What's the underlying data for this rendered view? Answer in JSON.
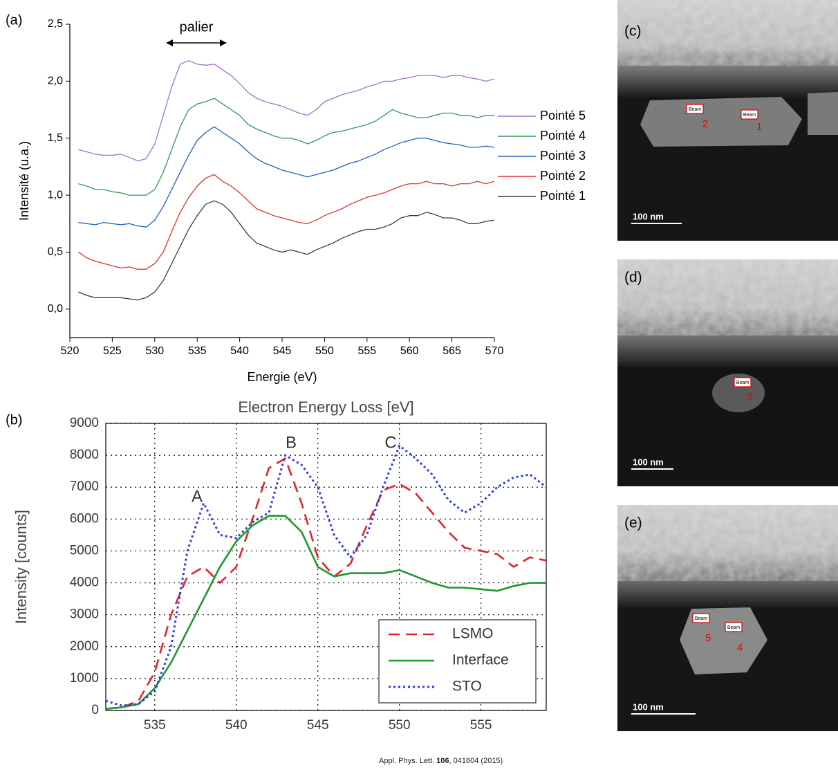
{
  "chart_data": [
    {
      "type": "line",
      "panel": "(a)",
      "xlabel": "Energie (eV)",
      "ylabel": "Intensité (u.a.)",
      "annotation": "palier",
      "xlim": [
        520,
        570
      ],
      "xticks": [
        520,
        525,
        530,
        535,
        540,
        545,
        550,
        555,
        560,
        565,
        570
      ],
      "ylim": [
        -0.25,
        2.5
      ],
      "yticks": [
        {
          "value": 0,
          "label": "0,0"
        },
        {
          "value": 0.5,
          "label": "0,5"
        },
        {
          "value": 1,
          "label": "1,0"
        },
        {
          "value": 1.5,
          "label": "1,5"
        },
        {
          "value": 2,
          "label": "2,0"
        },
        {
          "value": 2.5,
          "label": "2,5"
        }
      ],
      "grid": false,
      "legend": "right",
      "x": [
        521,
        522,
        523,
        524,
        525,
        526,
        527,
        528,
        529,
        530,
        531,
        532,
        533,
        534,
        535,
        536,
        537,
        538,
        539,
        540,
        541,
        542,
        543,
        544,
        545,
        546,
        547,
        548,
        549,
        550,
        551,
        552,
        553,
        554,
        555,
        556,
        557,
        558,
        559,
        560,
        561,
        562,
        563,
        564,
        565,
        566,
        567,
        568,
        569,
        570
      ],
      "series": [
        {
          "name": "Pointé 1",
          "color": "#3a3a3a",
          "dash": "solid",
          "values": [
            0.15,
            0.12,
            0.1,
            0.1,
            0.1,
            0.1,
            0.09,
            0.08,
            0.1,
            0.15,
            0.25,
            0.4,
            0.55,
            0.7,
            0.82,
            0.92,
            0.95,
            0.92,
            0.85,
            0.75,
            0.65,
            0.58,
            0.55,
            0.52,
            0.5,
            0.52,
            0.5,
            0.48,
            0.52,
            0.55,
            0.58,
            0.62,
            0.65,
            0.68,
            0.7,
            0.7,
            0.72,
            0.75,
            0.8,
            0.82,
            0.82,
            0.85,
            0.83,
            0.8,
            0.8,
            0.78,
            0.75,
            0.75,
            0.77,
            0.78
          ]
        },
        {
          "name": "Pointé 2",
          "color": "#e03030",
          "dash": "solid",
          "values": [
            0.5,
            0.45,
            0.42,
            0.4,
            0.38,
            0.36,
            0.37,
            0.35,
            0.35,
            0.4,
            0.5,
            0.68,
            0.85,
            0.98,
            1.08,
            1.15,
            1.18,
            1.12,
            1.08,
            1.02,
            0.95,
            0.88,
            0.85,
            0.82,
            0.8,
            0.78,
            0.76,
            0.75,
            0.78,
            0.82,
            0.85,
            0.88,
            0.92,
            0.95,
            0.98,
            1.0,
            1.02,
            1.05,
            1.08,
            1.1,
            1.1,
            1.12,
            1.1,
            1.1,
            1.08,
            1.1,
            1.1,
            1.12,
            1.1,
            1.12
          ]
        },
        {
          "name": "Pointé 3",
          "color": "#2060c0",
          "dash": "solid",
          "values": [
            0.76,
            0.75,
            0.74,
            0.76,
            0.75,
            0.74,
            0.75,
            0.73,
            0.72,
            0.78,
            0.9,
            1.05,
            1.2,
            1.35,
            1.48,
            1.55,
            1.6,
            1.55,
            1.5,
            1.45,
            1.38,
            1.32,
            1.28,
            1.25,
            1.22,
            1.2,
            1.18,
            1.16,
            1.18,
            1.2,
            1.22,
            1.25,
            1.28,
            1.3,
            1.33,
            1.36,
            1.4,
            1.43,
            1.46,
            1.48,
            1.5,
            1.5,
            1.48,
            1.46,
            1.45,
            1.44,
            1.42,
            1.42,
            1.43,
            1.42
          ]
        },
        {
          "name": "Pointé 4",
          "color": "#2e9a55",
          "dash": "solid",
          "values": [
            1.1,
            1.08,
            1.05,
            1.05,
            1.03,
            1.02,
            1.0,
            1.0,
            1.0,
            1.05,
            1.2,
            1.4,
            1.6,
            1.75,
            1.8,
            1.82,
            1.85,
            1.8,
            1.75,
            1.7,
            1.62,
            1.58,
            1.55,
            1.52,
            1.5,
            1.5,
            1.48,
            1.45,
            1.48,
            1.52,
            1.55,
            1.56,
            1.58,
            1.6,
            1.62,
            1.65,
            1.7,
            1.75,
            1.72,
            1.7,
            1.68,
            1.68,
            1.7,
            1.72,
            1.72,
            1.7,
            1.7,
            1.68,
            1.7,
            1.7
          ]
        },
        {
          "name": "Pointé 5",
          "color": "#a070d0",
          "dash": "solid",
          "values": [
            1.4,
            1.38,
            1.36,
            1.35,
            1.35,
            1.36,
            1.33,
            1.3,
            1.32,
            1.45,
            1.7,
            1.95,
            2.15,
            2.18,
            2.15,
            2.14,
            2.15,
            2.1,
            2.05,
            1.98,
            1.9,
            1.85,
            1.82,
            1.8,
            1.78,
            1.75,
            1.72,
            1.7,
            1.75,
            1.82,
            1.85,
            1.88,
            1.9,
            1.92,
            1.95,
            1.97,
            2.0,
            2.0,
            2.02,
            2.03,
            2.05,
            2.05,
            2.05,
            2.03,
            2.05,
            2.05,
            2.03,
            2.02,
            2.0,
            2.02
          ]
        }
      ]
    },
    {
      "type": "line",
      "panel": "(b)",
      "xlabel": "Electron Energy Loss [eV]",
      "ylabel": "Intensity [counts]",
      "annotations": [
        "A",
        "B",
        "C"
      ],
      "xlim": [
        532,
        559
      ],
      "xticks": [
        535,
        540,
        545,
        550,
        555
      ],
      "ylim": [
        0,
        9000
      ],
      "yticks": [
        0,
        1000,
        2000,
        3000,
        4000,
        5000,
        6000,
        7000,
        8000,
        9000
      ],
      "grid": true,
      "legend": "lower right",
      "x": [
        532,
        533,
        534,
        535,
        536,
        537,
        538,
        539,
        540,
        541,
        542,
        543,
        544,
        545,
        546,
        547,
        548,
        549,
        550,
        551,
        552,
        553,
        554,
        555,
        556,
        557,
        558,
        559
      ],
      "series": [
        {
          "name": "LSMO",
          "color": "#e8202a",
          "dash": "dashed",
          "values": [
            50,
            100,
            300,
            1200,
            3000,
            4200,
            4500,
            4000,
            4500,
            6000,
            7600,
            7900,
            6500,
            4800,
            4200,
            4600,
            5800,
            6900,
            7100,
            6800,
            6200,
            5600,
            5100,
            5000,
            4900,
            4500,
            4800,
            4700
          ]
        },
        {
          "name": "Interface",
          "color": "#1a9a2a",
          "dash": "solid",
          "values": [
            50,
            100,
            200,
            700,
            1500,
            2500,
            3500,
            4500,
            5300,
            5800,
            6100,
            6100,
            5600,
            4500,
            4200,
            4300,
            4300,
            4300,
            4400,
            4200,
            4000,
            3850,
            3850,
            3800,
            3750,
            3900,
            4000,
            4000
          ]
        },
        {
          "name": "STO",
          "color": "#2a3ae8",
          "dash": "dotted",
          "values": [
            300,
            150,
            200,
            600,
            2000,
            5000,
            6500,
            5500,
            5400,
            5900,
            6200,
            8000,
            7700,
            7000,
            5500,
            4800,
            5500,
            7000,
            8300,
            7900,
            7400,
            6600,
            6200,
            6500,
            7000,
            7300,
            7400,
            7000
          ]
        }
      ]
    }
  ],
  "micrographs": [
    {
      "label": "(c)",
      "scale_bar": "100 nm",
      "beams": [
        {
          "tag": "Beam",
          "point": "2"
        },
        {
          "tag": "Beam",
          "point": "1"
        }
      ]
    },
    {
      "label": "(d)",
      "scale_bar": "100 nm",
      "beams": [
        {
          "tag": "Beam",
          "point": "3"
        }
      ]
    },
    {
      "label": "(e)",
      "scale_bar": "100 nm",
      "beams": [
        {
          "tag": "Beam",
          "point": "5"
        },
        {
          "tag": "Beam",
          "point": "4"
        }
      ]
    }
  ],
  "citation": {
    "journal": "Appl. Phys. Lett.",
    "volume": "106",
    "pages": "041604 (2015)"
  }
}
